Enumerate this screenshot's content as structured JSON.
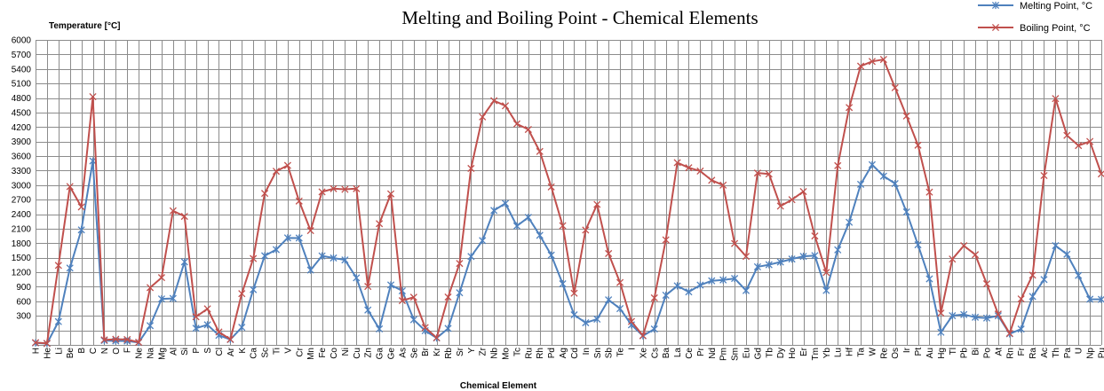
{
  "chart_data": {
    "type": "line",
    "title": "Melting and Boiling Point - Chemical Elements",
    "xlabel": "Chemical Element",
    "ylabel": "Temperature [°C]",
    "ylim": [
      -300,
      6000
    ],
    "yticks": [
      300,
      600,
      900,
      1200,
      1500,
      1800,
      2100,
      2400,
      2700,
      3000,
      3300,
      3600,
      3900,
      4200,
      4500,
      4800,
      5100,
      5400,
      5700,
      6000
    ],
    "grid": true,
    "legend_position": "top-right",
    "categories": [
      "H",
      "He",
      "Li",
      "Be",
      "B",
      "C",
      "N",
      "O",
      "F",
      "Ne",
      "Na",
      "Mg",
      "Al",
      "Si",
      "P",
      "S",
      "Cl",
      "Ar",
      "K",
      "Ca",
      "Sc",
      "Ti",
      "V",
      "Cr",
      "Mn",
      "Fe",
      "Co",
      "Ni",
      "Cu",
      "Zn",
      "Ga",
      "Ge",
      "As",
      "Se",
      "Br",
      "Kr",
      "Rb",
      "Sr",
      "Y",
      "Zr",
      "Nb",
      "Mo",
      "Tc",
      "Ru",
      "Rh",
      "Pd",
      "Ag",
      "Cd",
      "In",
      "Sn",
      "Sb",
      "Te",
      "I",
      "Xe",
      "Cs",
      "Ba",
      "La",
      "Ce",
      "Pr",
      "Nd",
      "Pm",
      "Sm",
      "Eu",
      "Gd",
      "Tb",
      "Dy",
      "Ho",
      "Er",
      "Tm",
      "Yb",
      "Lu",
      "Hf",
      "Ta",
      "W",
      "Re",
      "Os",
      "Ir",
      "Pt",
      "Au",
      "Hg",
      "Tl",
      "Pb",
      "Bi",
      "Po",
      "At",
      "Rn",
      "Fr",
      "Ra",
      "Ac",
      "Th",
      "Pa",
      "U",
      "Np",
      "Pu"
    ],
    "series": [
      {
        "name": "Melting Point, °C",
        "color": "#4f81bd",
        "marker": "asterisk",
        "values": [
          -259,
          -272,
          181,
          1287,
          2076,
          3500,
          -210,
          -218,
          -220,
          -249,
          98,
          650,
          660,
          1414,
          44,
          115,
          -102,
          -189,
          63,
          842,
          1541,
          1668,
          1910,
          1907,
          1246,
          1538,
          1495,
          1455,
          1085,
          420,
          30,
          938,
          817,
          221,
          -7,
          -157,
          39,
          777,
          1526,
          1855,
          2477,
          2623,
          2157,
          2334,
          1964,
          1555,
          962,
          321,
          157,
          232,
          631,
          450,
          114,
          -112,
          28,
          727,
          920,
          795,
          935,
          1024,
          1042,
          1072,
          822,
          1313,
          1356,
          1412,
          1474,
          1529,
          1545,
          824,
          1663,
          2233,
          3017,
          3422,
          3186,
          3033,
          2446,
          1768,
          1064,
          -39,
          304,
          327,
          271,
          254,
          302,
          -71,
          27,
          700,
          1050,
          1750,
          1572,
          1135,
          644,
          640
        ]
      },
      {
        "name": "Boiling Point, °C",
        "color": "#c0504d",
        "marker": "x",
        "values": [
          -253,
          -269,
          1342,
          2970,
          2550,
          4827,
          -196,
          -183,
          -188,
          -246,
          883,
          1090,
          2470,
          2355,
          280,
          445,
          -34,
          -186,
          759,
          1484,
          2830,
          3287,
          3407,
          2671,
          2061,
          2861,
          2927,
          2913,
          2927,
          907,
          2204,
          2820,
          614,
          685,
          59,
          -153,
          688,
          1382,
          3345,
          4409,
          4744,
          4639,
          4265,
          4150,
          3695,
          2963,
          2162,
          767,
          2072,
          2602,
          1587,
          988,
          184,
          -108,
          671,
          1870,
          3464,
          3360,
          3290,
          3100,
          3000,
          1794,
          1529,
          3250,
          3230,
          2567,
          2700,
          2868,
          1950,
          1196,
          3402,
          4603,
          5458,
          5555,
          5596,
          5012,
          4428,
          3825,
          2856,
          357,
          1473,
          1749,
          1564,
          962,
          337,
          -62,
          650,
          1140,
          3198,
          4788,
          4027,
          3818,
          3902,
          3232
        ]
      }
    ]
  }
}
